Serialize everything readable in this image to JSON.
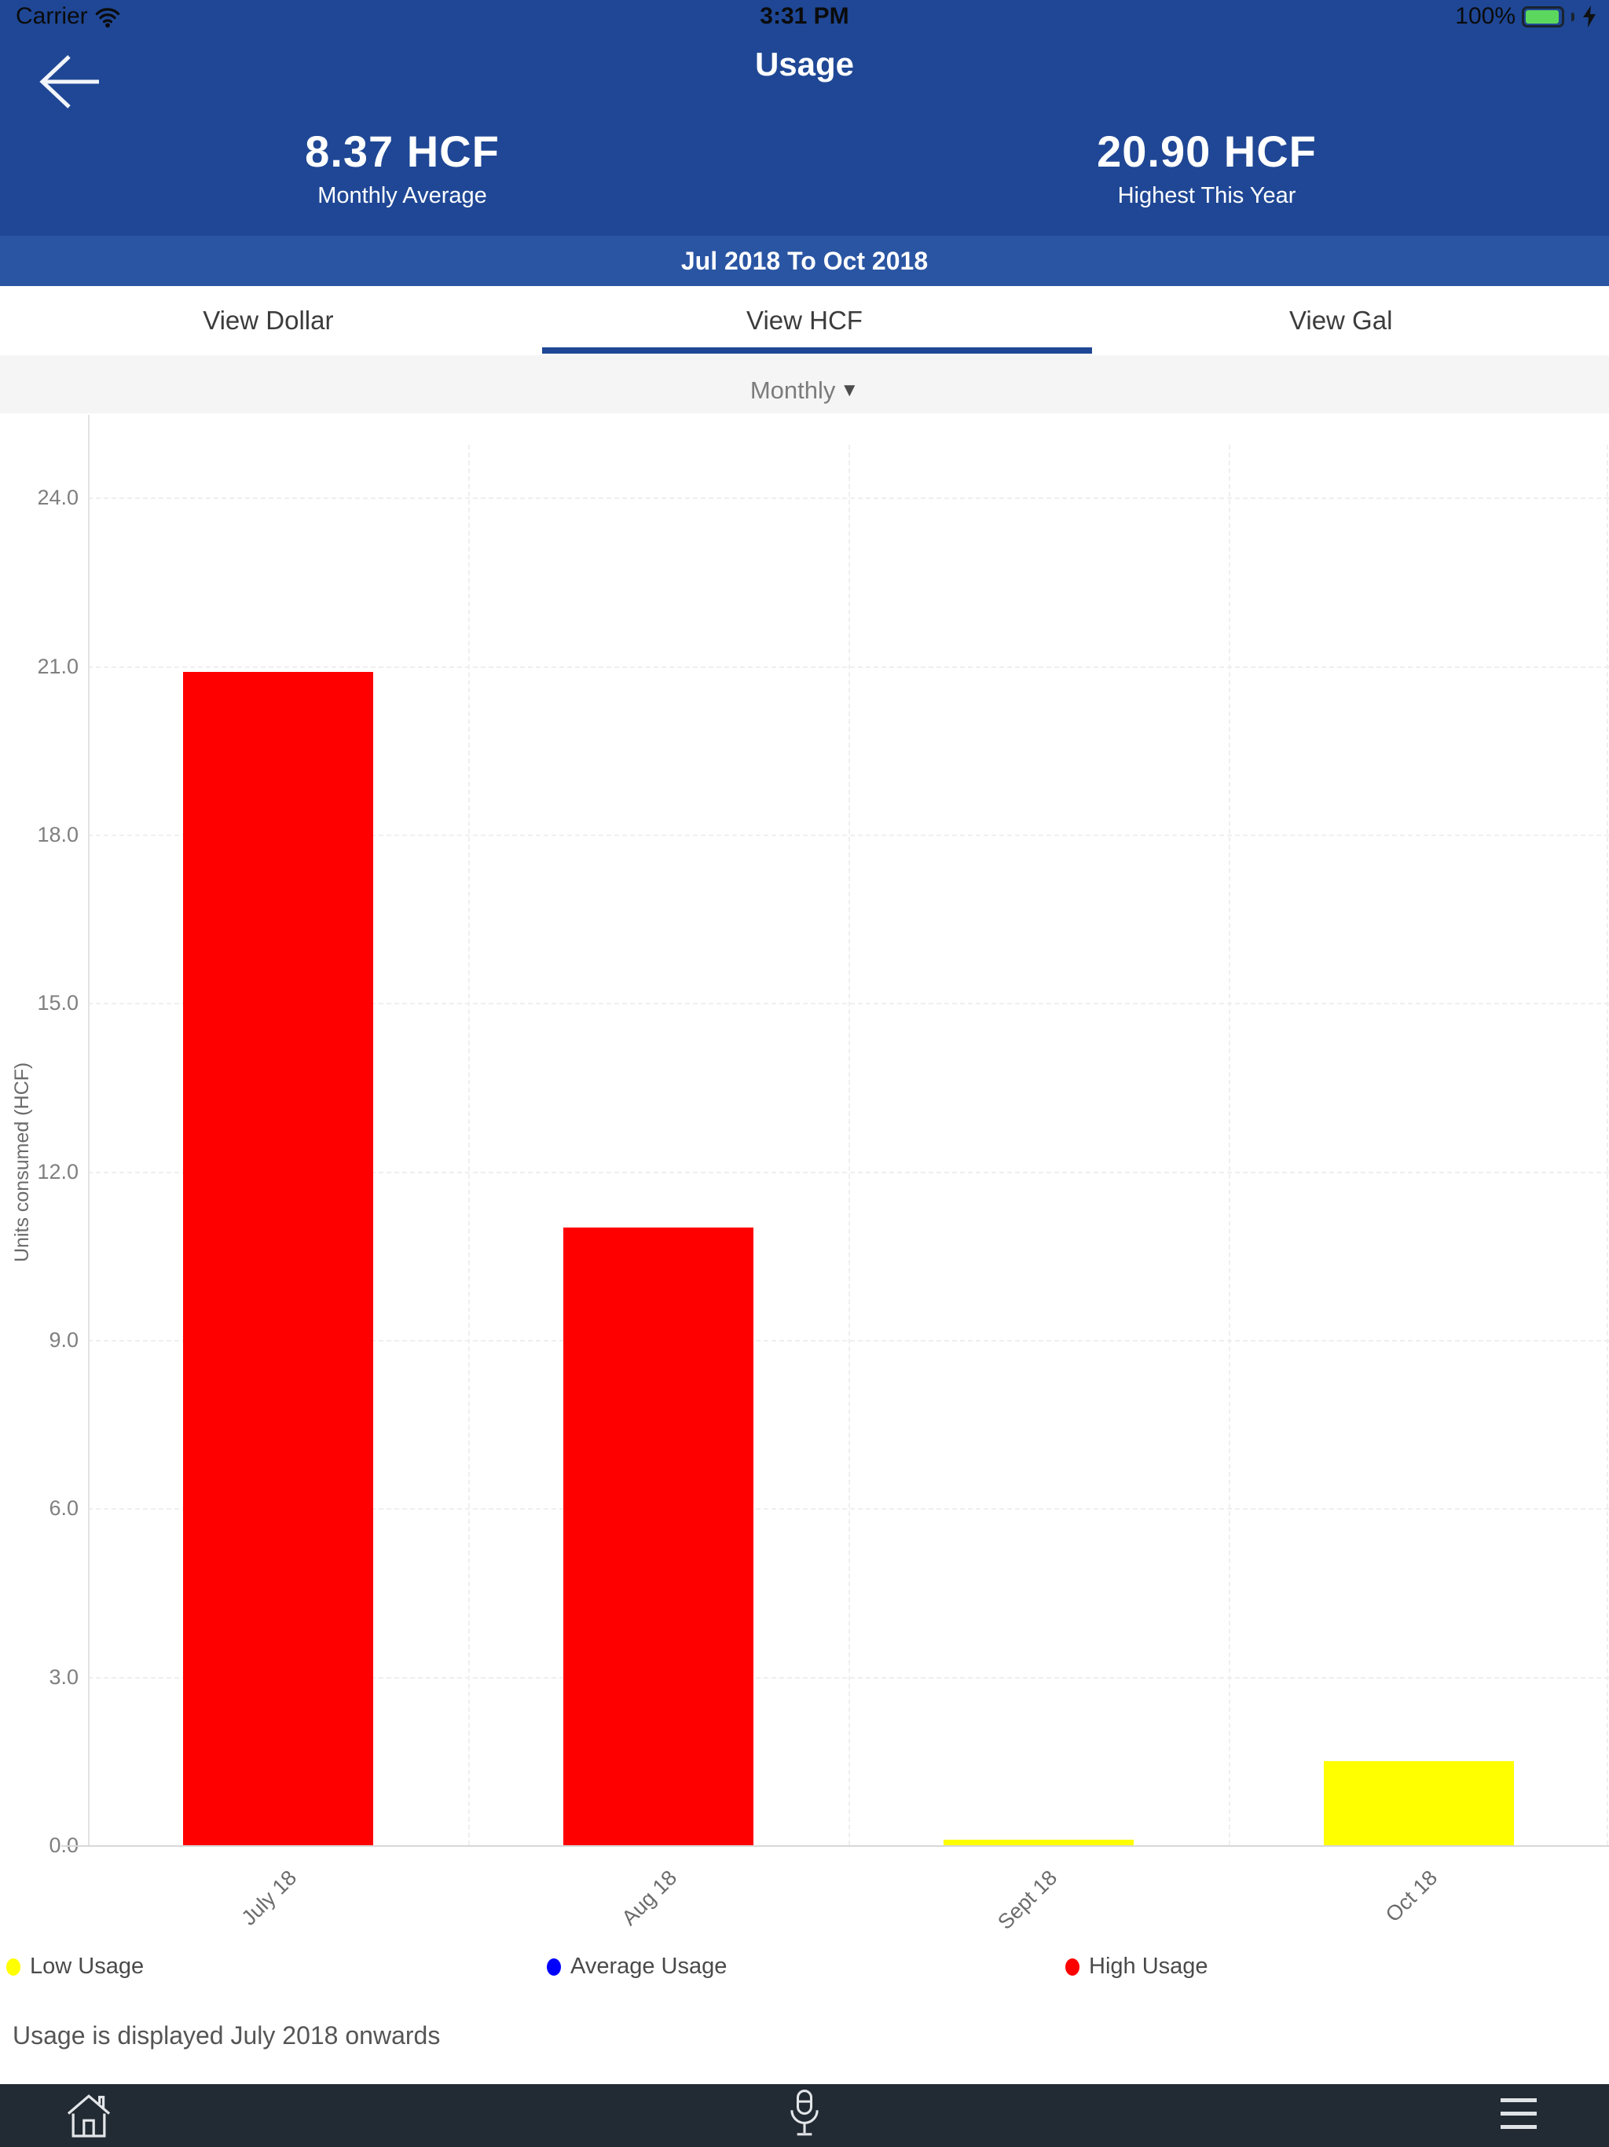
{
  "status_bar": {
    "carrier": "Carrier",
    "time": "3:31 PM",
    "battery_percent": "100%"
  },
  "header": {
    "title": "Usage",
    "stats": [
      {
        "value": "8.37 HCF",
        "label": "Monthly Average"
      },
      {
        "value": "20.90 HCF",
        "label": "Highest This Year"
      }
    ],
    "date_range": "Jul 2018 To Oct 2018"
  },
  "tabs": [
    {
      "label": "View Dollar",
      "active": false
    },
    {
      "label": "View HCF",
      "active": true
    },
    {
      "label": "View Gal",
      "active": false
    }
  ],
  "period_selector": {
    "value": "Monthly",
    "arrow_icon": "▼"
  },
  "chart_data": {
    "type": "bar",
    "categories": [
      "July 18",
      "Aug 18",
      "Sept 18",
      "Oct 18"
    ],
    "values": [
      20.9,
      11.0,
      0.1,
      1.5
    ],
    "bar_colors": [
      "#ff0000",
      "#ff0000",
      "#ffff00",
      "#ffff00"
    ],
    "title": "",
    "xlabel": "",
    "ylabel": "Units consumed (HCF)",
    "ylim": [
      0,
      25.5
    ],
    "yticks": [
      0,
      3,
      6,
      9,
      12,
      15,
      18,
      21,
      24
    ],
    "grid": true,
    "legend_position": "bottom",
    "legend": [
      {
        "label": "Low Usage",
        "color": "#ffff00"
      },
      {
        "label": "Average Usage",
        "color": "#0000ff"
      },
      {
        "label": "High Usage",
        "color": "#ff0000"
      }
    ]
  },
  "footer_note": "Usage is displayed July 2018 onwards",
  "colors": {
    "header_blue": "#1f4795",
    "date_band_blue": "#2a55a3",
    "accent": "#1f4795",
    "nav_bar": "#222a33",
    "battery_green": "#5bd75e"
  }
}
